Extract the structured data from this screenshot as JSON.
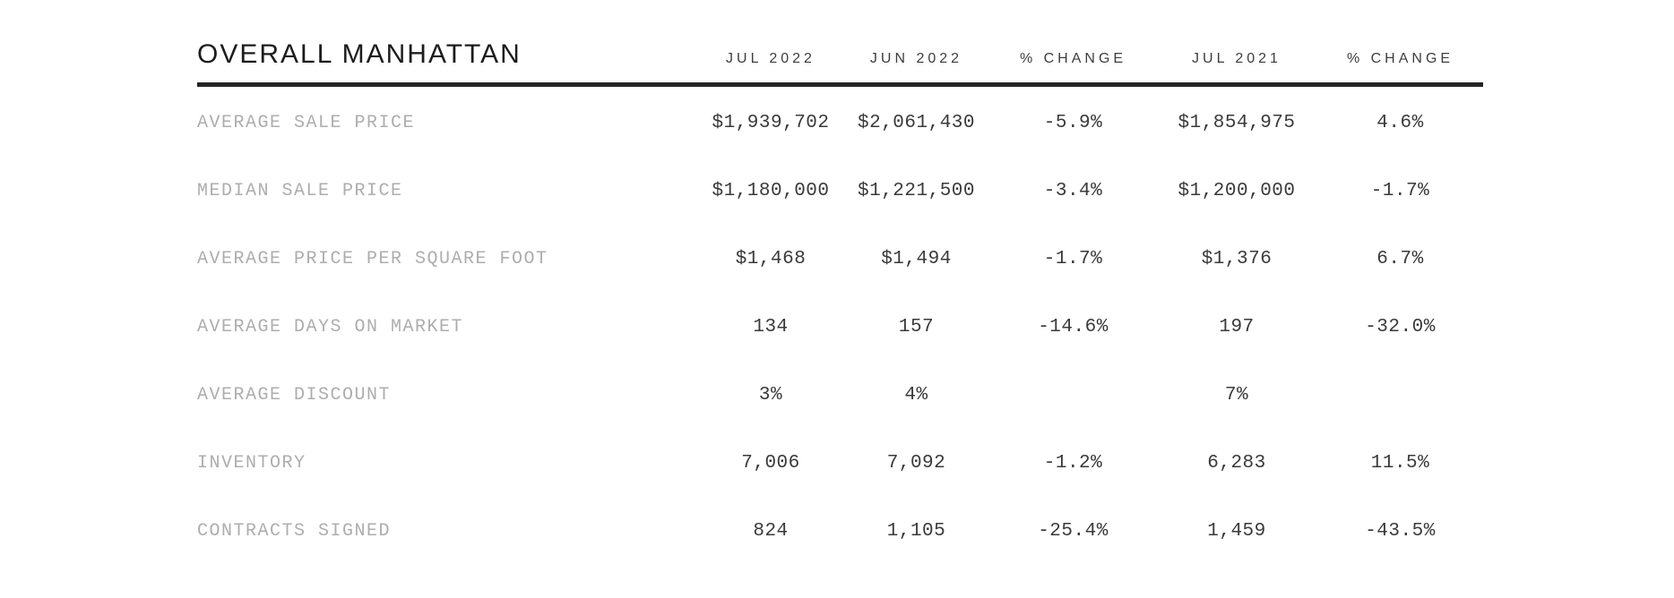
{
  "chart_data": {
    "type": "table",
    "title": "OVERALL MANHATTAN",
    "columns": [
      "JUL 2022",
      "JUN 2022",
      "% CHANGE",
      "JUL 2021",
      "% CHANGE"
    ],
    "rows": [
      {
        "label": "AVERAGE SALE PRICE",
        "values": [
          "$1,939,702",
          "$2,061,430",
          "-5.9%",
          "$1,854,975",
          "4.6%"
        ]
      },
      {
        "label": "MEDIAN SALE PRICE",
        "values": [
          "$1,180,000",
          "$1,221,500",
          "-3.4%",
          "$1,200,000",
          "-1.7%"
        ]
      },
      {
        "label": "AVERAGE PRICE PER SQUARE FOOT",
        "values": [
          "$1,468",
          "$1,494",
          "-1.7%",
          "$1,376",
          "6.7%"
        ]
      },
      {
        "label": "AVERAGE DAYS ON MARKET",
        "values": [
          "134",
          "157",
          "-14.6%",
          "197",
          "-32.0%"
        ]
      },
      {
        "label": "AVERAGE DISCOUNT",
        "values": [
          "3%",
          "4%",
          "",
          "7%",
          ""
        ]
      },
      {
        "label": "INVENTORY",
        "values": [
          "7,006",
          "7,092",
          "-1.2%",
          "6,283",
          "11.5%"
        ]
      },
      {
        "label": "CONTRACTS SIGNED",
        "values": [
          "824",
          "1,105",
          "-25.4%",
          "1,459",
          "-43.5%"
        ]
      }
    ],
    "colors": {
      "title": "#1c1c1c",
      "column_header": "#3d3d3d",
      "row_label": "#adadad",
      "value": "#3a3a3a",
      "header_rule": "#242424",
      "background": "#ffffff"
    },
    "layout_hints": {
      "header_rule": "thick solid line under header row",
      "value_alignment": "center",
      "label_alignment": "left"
    }
  }
}
